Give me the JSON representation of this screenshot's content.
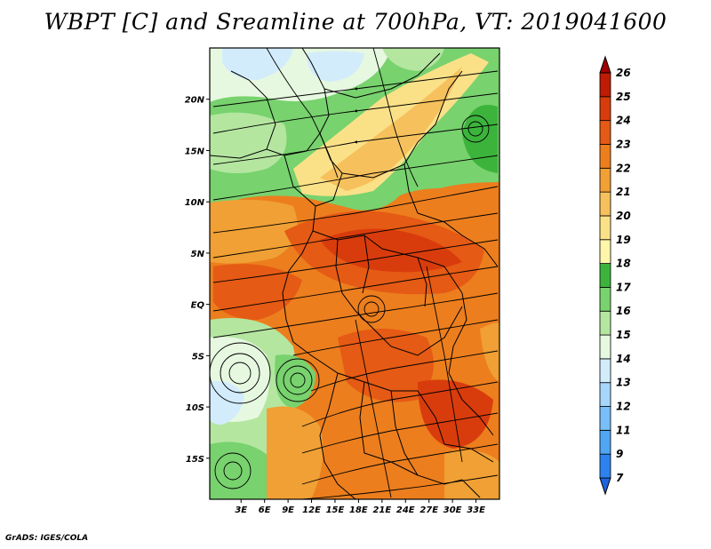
{
  "title": "WBPT [C] and Sreamline at 700hPa, VT: 2019041600",
  "footer": "GrADS: IGES/COLA",
  "map": {
    "lon_range": [
      -1,
      36
    ],
    "lat_range": [
      -19,
      25
    ],
    "lon_ticks": [
      {
        "value": 3,
        "label": "3E"
      },
      {
        "value": 6,
        "label": "6E"
      },
      {
        "value": 9,
        "label": "9E"
      },
      {
        "value": 12,
        "label": "12E"
      },
      {
        "value": 15,
        "label": "15E"
      },
      {
        "value": 18,
        "label": "18E"
      },
      {
        "value": 21,
        "label": "21E"
      },
      {
        "value": 24,
        "label": "24E"
      },
      {
        "value": 27,
        "label": "27E"
      },
      {
        "value": 30,
        "label": "30E"
      },
      {
        "value": 33,
        "label": "33E"
      }
    ],
    "lat_ticks": [
      {
        "value": 20,
        "label": "20N"
      },
      {
        "value": 15,
        "label": "15N"
      },
      {
        "value": 10,
        "label": "10N"
      },
      {
        "value": 5,
        "label": "5N"
      },
      {
        "value": 0,
        "label": "EQ"
      },
      {
        "value": -5,
        "label": "5S"
      },
      {
        "value": -10,
        "label": "10S"
      },
      {
        "value": -15,
        "label": "15S"
      }
    ]
  },
  "colorbar": {
    "labels": [
      "7",
      "9",
      "11",
      "12",
      "13",
      "14",
      "15",
      "16",
      "17",
      "18",
      "19",
      "20",
      "21",
      "22",
      "23",
      "24",
      "25",
      "26"
    ],
    "colors": [
      "#1e64dc",
      "#2e82f0",
      "#50a5f5",
      "#78bef9",
      "#a6d6fb",
      "#d2ecfc",
      "#e6f8e0",
      "#b4e6a0",
      "#78d26e",
      "#3cb43c",
      "#fff6aa",
      "#fae188",
      "#f6c15c",
      "#f0a034",
      "#ec7e1e",
      "#e55a14",
      "#d93c0c",
      "#be1c04",
      "#a00000"
    ]
  }
}
